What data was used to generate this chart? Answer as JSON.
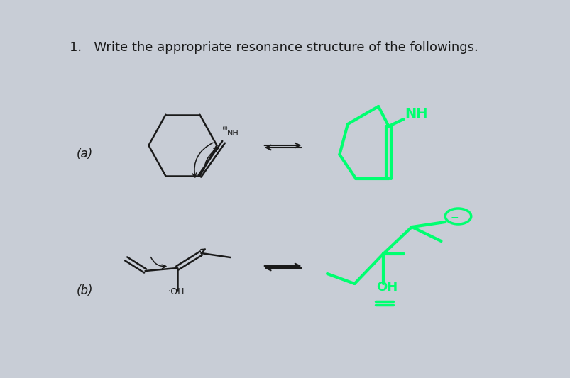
{
  "title": "1.   Write the appropriate resonance structure of the followings.",
  "title_fontsize": 13,
  "bg_color": "#c8cdd6",
  "black": "#1a1a1a",
  "green": "#00ff70",
  "label_a": "(a)",
  "label_b": "(b)"
}
